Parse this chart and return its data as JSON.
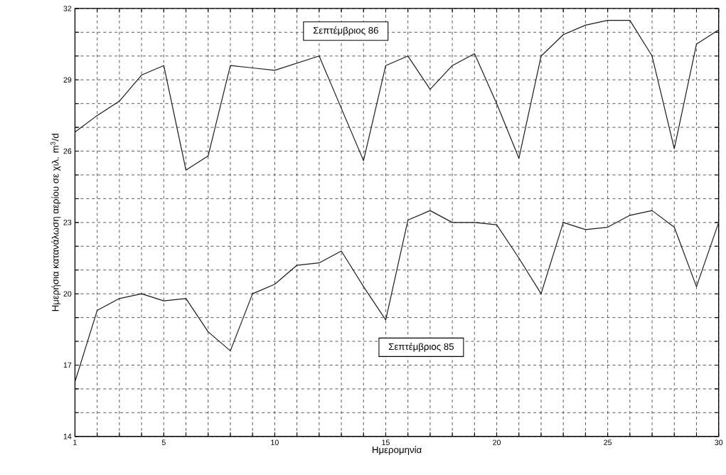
{
  "chart_data": {
    "type": "line",
    "xlabel": "Ημερομηνία",
    "ylabel": "Ημερήσια κατανάλωση αερίου σε χιλ. m$^{3}$/d",
    "x": [
      1,
      2,
      3,
      4,
      5,
      6,
      7,
      8,
      9,
      10,
      11,
      12,
      13,
      14,
      15,
      16,
      17,
      18,
      19,
      20,
      21,
      22,
      23,
      24,
      25,
      26,
      27,
      28,
      29,
      30
    ],
    "series": [
      {
        "name": "Σεπτέμβριος 86",
        "color": "#1a1a1a",
        "values": [
          26.8,
          27.5,
          28.1,
          29.2,
          29.6,
          25.2,
          25.8,
          29.6,
          29.5,
          29.4,
          29.7,
          30.0,
          27.8,
          25.6,
          29.6,
          30.0,
          28.6,
          29.6,
          30.1,
          28.0,
          25.7,
          30.0,
          30.9,
          31.3,
          31.5,
          31.5,
          30.0,
          26.1,
          30.5,
          31.1
        ]
      },
      {
        "name": "Σεπτέμβριος 85",
        "color": "#1a1a1a",
        "values": [
          16.3,
          19.3,
          19.8,
          20.0,
          19.7,
          19.8,
          18.4,
          17.6,
          20.0,
          20.4,
          21.2,
          21.3,
          21.8,
          20.3,
          18.9,
          23.1,
          23.5,
          23.0,
          23.0,
          22.9,
          21.5,
          20.0,
          23.0,
          22.7,
          22.8,
          23.3,
          23.5,
          22.8,
          20.3,
          23.0
        ]
      }
    ],
    "xlim": [
      1,
      30
    ],
    "ylim": [
      14,
      32
    ],
    "xticks": [
      1,
      {
        "value": 2,
        "label": null
      },
      {
        "value": 3,
        "label": null
      },
      {
        "value": 4,
        "label": null
      },
      5,
      {
        "value": 6,
        "label": null
      },
      {
        "value": 7,
        "label": null
      },
      {
        "value": 8,
        "label": null
      },
      {
        "value": 9,
        "label": null
      },
      10,
      {
        "value": 11,
        "label": null
      },
      {
        "value": 12,
        "label": null
      },
      {
        "value": 13,
        "label": null
      },
      {
        "value": 14,
        "label": null
      },
      15,
      {
        "value": 16,
        "label": null
      },
      {
        "value": 17,
        "label": null
      },
      {
        "value": 18,
        "label": null
      },
      {
        "value": 19,
        "label": null
      },
      20,
      {
        "value": 21,
        "label": null
      },
      {
        "value": 22,
        "label": null
      },
      {
        "value": 23,
        "label": null
      },
      {
        "value": 24,
        "label": null
      },
      25,
      {
        "value": 26,
        "label": null
      },
      {
        "value": 27,
        "label": null
      },
      {
        "value": 28,
        "label": null
      },
      {
        "value": 29,
        "label": null
      },
      30
    ],
    "yticks": [
      14,
      {
        "value": 15,
        "label": null
      },
      {
        "value": 16,
        "label": null
      },
      17,
      {
        "value": 18,
        "label": null
      },
      {
        "value": 19,
        "label": null
      },
      20,
      {
        "value": 21,
        "label": null
      },
      {
        "value": 22,
        "label": null
      },
      23,
      {
        "value": 24,
        "label": null
      },
      {
        "value": 25,
        "label": null
      },
      26,
      {
        "value": 27,
        "label": null
      },
      {
        "value": 28,
        "label": null
      },
      29,
      {
        "value": 30,
        "label": null
      },
      {
        "value": 31,
        "label": null
      },
      32
    ],
    "grid": true,
    "line_style": "solid",
    "marker": "none"
  }
}
